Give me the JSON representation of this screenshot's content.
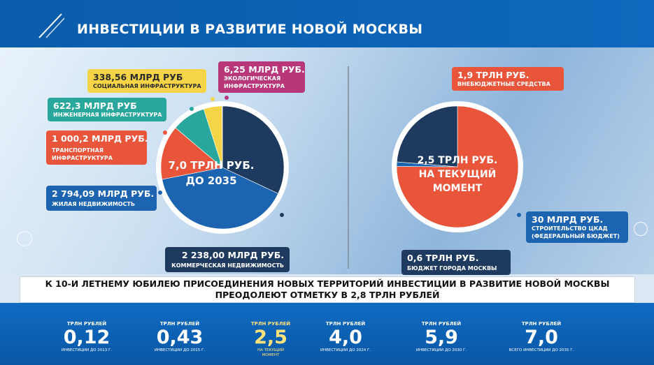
{
  "header": {
    "title": "ИНВЕСТИЦИИ В РАЗВИТИЕ НОВОЙ МОСКВЫ"
  },
  "colors": {
    "dark_blue": "#1f3a5f",
    "blue": "#1d64b0",
    "red": "#e9553a",
    "teal": "#2aa79c",
    "yellow": "#f5d547",
    "magenta": "#b8367a",
    "header_blue": "#0b5cab"
  },
  "chart_data": [
    {
      "type": "pie",
      "center_label": [
        "7,0 ТРЛН РУБ.",
        "ДО 2035"
      ],
      "slices": [
        {
          "value": 2238.0,
          "label": "2 238,00 МЛРД РУБ.",
          "category": "КОММЕРЧЕСКАЯ НЕДВИЖИМОСТЬ",
          "color": "#1f3a5f"
        },
        {
          "value": 2794.09,
          "label": "2 794,09 МЛРД РУБ.",
          "category": "ЖИЛАЯ НЕДВИЖИМОСТЬ",
          "color": "#1d64b0"
        },
        {
          "value": 1000.2,
          "label": "1 000,2 МЛРД РУБ.",
          "category": "ТРАНСПОРТНАЯ ИНФРАСТРУКТУРА",
          "category_lines": [
            "ТРАНСПОРТНАЯ",
            "ИНФРАСТРУКТУРА"
          ],
          "color": "#e9553a"
        },
        {
          "value": 622.3,
          "label": "622,3 МЛРД РУБ",
          "category": "ИНЖЕНЕРНАЯ ИНФРАСТРУКТУРА",
          "color": "#2aa79c"
        },
        {
          "value": 338.56,
          "label": "338,56 МЛРД РУБ",
          "category": "СОЦИАЛЬНАЯ ИНФРАСТРУКТУРА",
          "color": "#f5d547"
        },
        {
          "value": 6.25,
          "label": "6,25 МЛРД РУБ.",
          "category": "ЭКОЛОГИЧЕСКАЯ ИНФРАСТРУКТУРА",
          "category_lines": [
            "ЭКОЛОГИЧЕСКАЯ",
            "ИНФРАСТРУКТУРА"
          ],
          "color": "#b8367a"
        }
      ]
    },
    {
      "type": "pie",
      "center_label": [
        "2,5 ТРЛН РУБ.",
        "НА ТЕКУЩИЙ",
        "МОМЕНТ"
      ],
      "slices": [
        {
          "value": 1.9,
          "label": "1,9 ТРЛН РУБ.",
          "category": "ВНЕБЮДЖЕТНЫЕ СРЕДСТВА",
          "color": "#e9553a"
        },
        {
          "value": 0.03,
          "label": "30 МЛРД РУБ.",
          "category": "СТРОИТЕЛЬСТВО ЦКАД (ФЕДЕРАЛЬНЫЙ БЮДЖЕТ)",
          "category_lines": [
            "СТРОИТЕЛЬСТВО ЦКАД",
            "(ФЕДЕРАЛЬНЫЙ БЮДЖЕТ)"
          ],
          "color": "#1d64b0"
        },
        {
          "value": 0.6,
          "label": "0,6 ТРЛН РУБ.",
          "category": "БЮДЖЕТ ГОРОДА МОСКВЫ",
          "color": "#1f3a5f"
        }
      ]
    }
  ],
  "banner": {
    "line1": "К 10-И ЛЕТНЕМУ ЮБИЛЕЮ ПРИСОЕДИНЕНИЯ НОВЫХ ТЕРРИТОРИЙ ИНВЕСТИЦИИ В РАЗВИТИЕ НОВОЙ МОСКВЫ",
    "line2": "ПРЕОДОЛЕЮТ ОТМЕТКУ В 2,8 ТРЛН РУБЛЕЙ"
  },
  "stats": [
    {
      "unit": "ТРЛН РУБЛЕЙ",
      "value": "0,12",
      "caption": [
        "ИНВЕСТИЦИИ ДО 2013 Г."
      ]
    },
    {
      "unit": "ТРЛН РУБЛЕЙ",
      "value": "0,43",
      "caption": [
        "ИНВЕСТИЦИИ ДО 2015 Г."
      ]
    },
    {
      "unit": "ТРЛН РУБЛЕЙ",
      "value": "2,5",
      "caption": [
        "НА ТЕКУЩИЙ",
        "МОМЕНТ"
      ],
      "highlight": true
    },
    {
      "unit": "ТРЛН РУБЛЕЙ",
      "value": "4,0",
      "caption": [
        "ИНВЕСТИЦИИ ДО 2024 Г."
      ]
    },
    {
      "unit": "ТРЛН РУБЛЕЙ",
      "value": "5,9",
      "caption": [
        "ИНВЕСТИЦИИ ДО 2030 Г."
      ]
    },
    {
      "unit": "ТРЛН РУБЛЕЙ",
      "value": "7,0",
      "caption": [
        "ВСЕГО ИНВЕСТИЦИИ ДО 2035 Г."
      ]
    }
  ]
}
